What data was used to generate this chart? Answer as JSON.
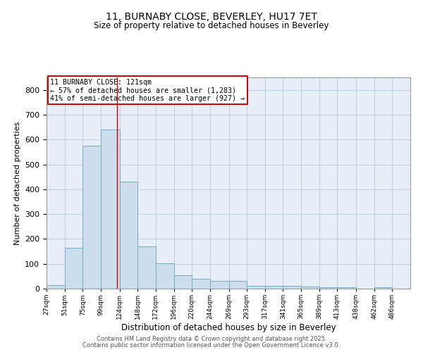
{
  "title1": "11, BURNABY CLOSE, BEVERLEY, HU17 7ET",
  "title2": "Size of property relative to detached houses in Beverley",
  "xlabel": "Distribution of detached houses by size in Beverley",
  "ylabel": "Number of detached properties",
  "bar_color": "#ccdded",
  "bar_edge_color": "#7aaabb",
  "background_color": "#e8eef8",
  "bin_edges": [
    27,
    51,
    75,
    99,
    124,
    148,
    172,
    196,
    220,
    244,
    269,
    293,
    317,
    341,
    365,
    389,
    413,
    438,
    462,
    486,
    510
  ],
  "bar_heights": [
    15,
    165,
    575,
    640,
    430,
    170,
    103,
    55,
    40,
    30,
    30,
    12,
    10,
    10,
    8,
    7,
    6,
    0,
    7,
    0
  ],
  "vline_x": 121,
  "vline_color": "#cc0000",
  "annotation_line1": "11 BURNABY CLOSE: 121sqm",
  "annotation_line2": "← 57% of detached houses are smaller (1,283)",
  "annotation_line3": "41% of semi-detached houses are larger (927) →",
  "annotation_box_color": "#cc0000",
  "ylim": [
    0,
    850
  ],
  "yticks": [
    0,
    100,
    200,
    300,
    400,
    500,
    600,
    700,
    800
  ],
  "footer1": "Contains HM Land Registry data © Crown copyright and database right 2025.",
  "footer2": "Contains public sector information licensed under the Open Government Licence v3.0.",
  "grid_color": "#b8c8dc"
}
